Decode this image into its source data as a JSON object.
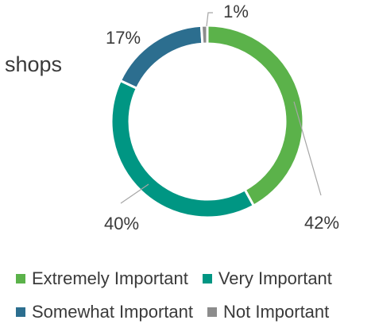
{
  "side_title": "shops",
  "chart_data": {
    "type": "pie",
    "donut": true,
    "categories": [
      "Extremely Important",
      "Very Important",
      "Somewhat Important",
      "Not Important"
    ],
    "values": [
      42,
      40,
      17,
      1
    ],
    "data_labels": [
      "42%",
      "40%",
      "17%",
      "1%"
    ],
    "colors": [
      "#5BB24A",
      "#009683",
      "#2C6E8F",
      "#8C8C8C"
    ],
    "legend": {
      "placement": "bottom"
    }
  }
}
